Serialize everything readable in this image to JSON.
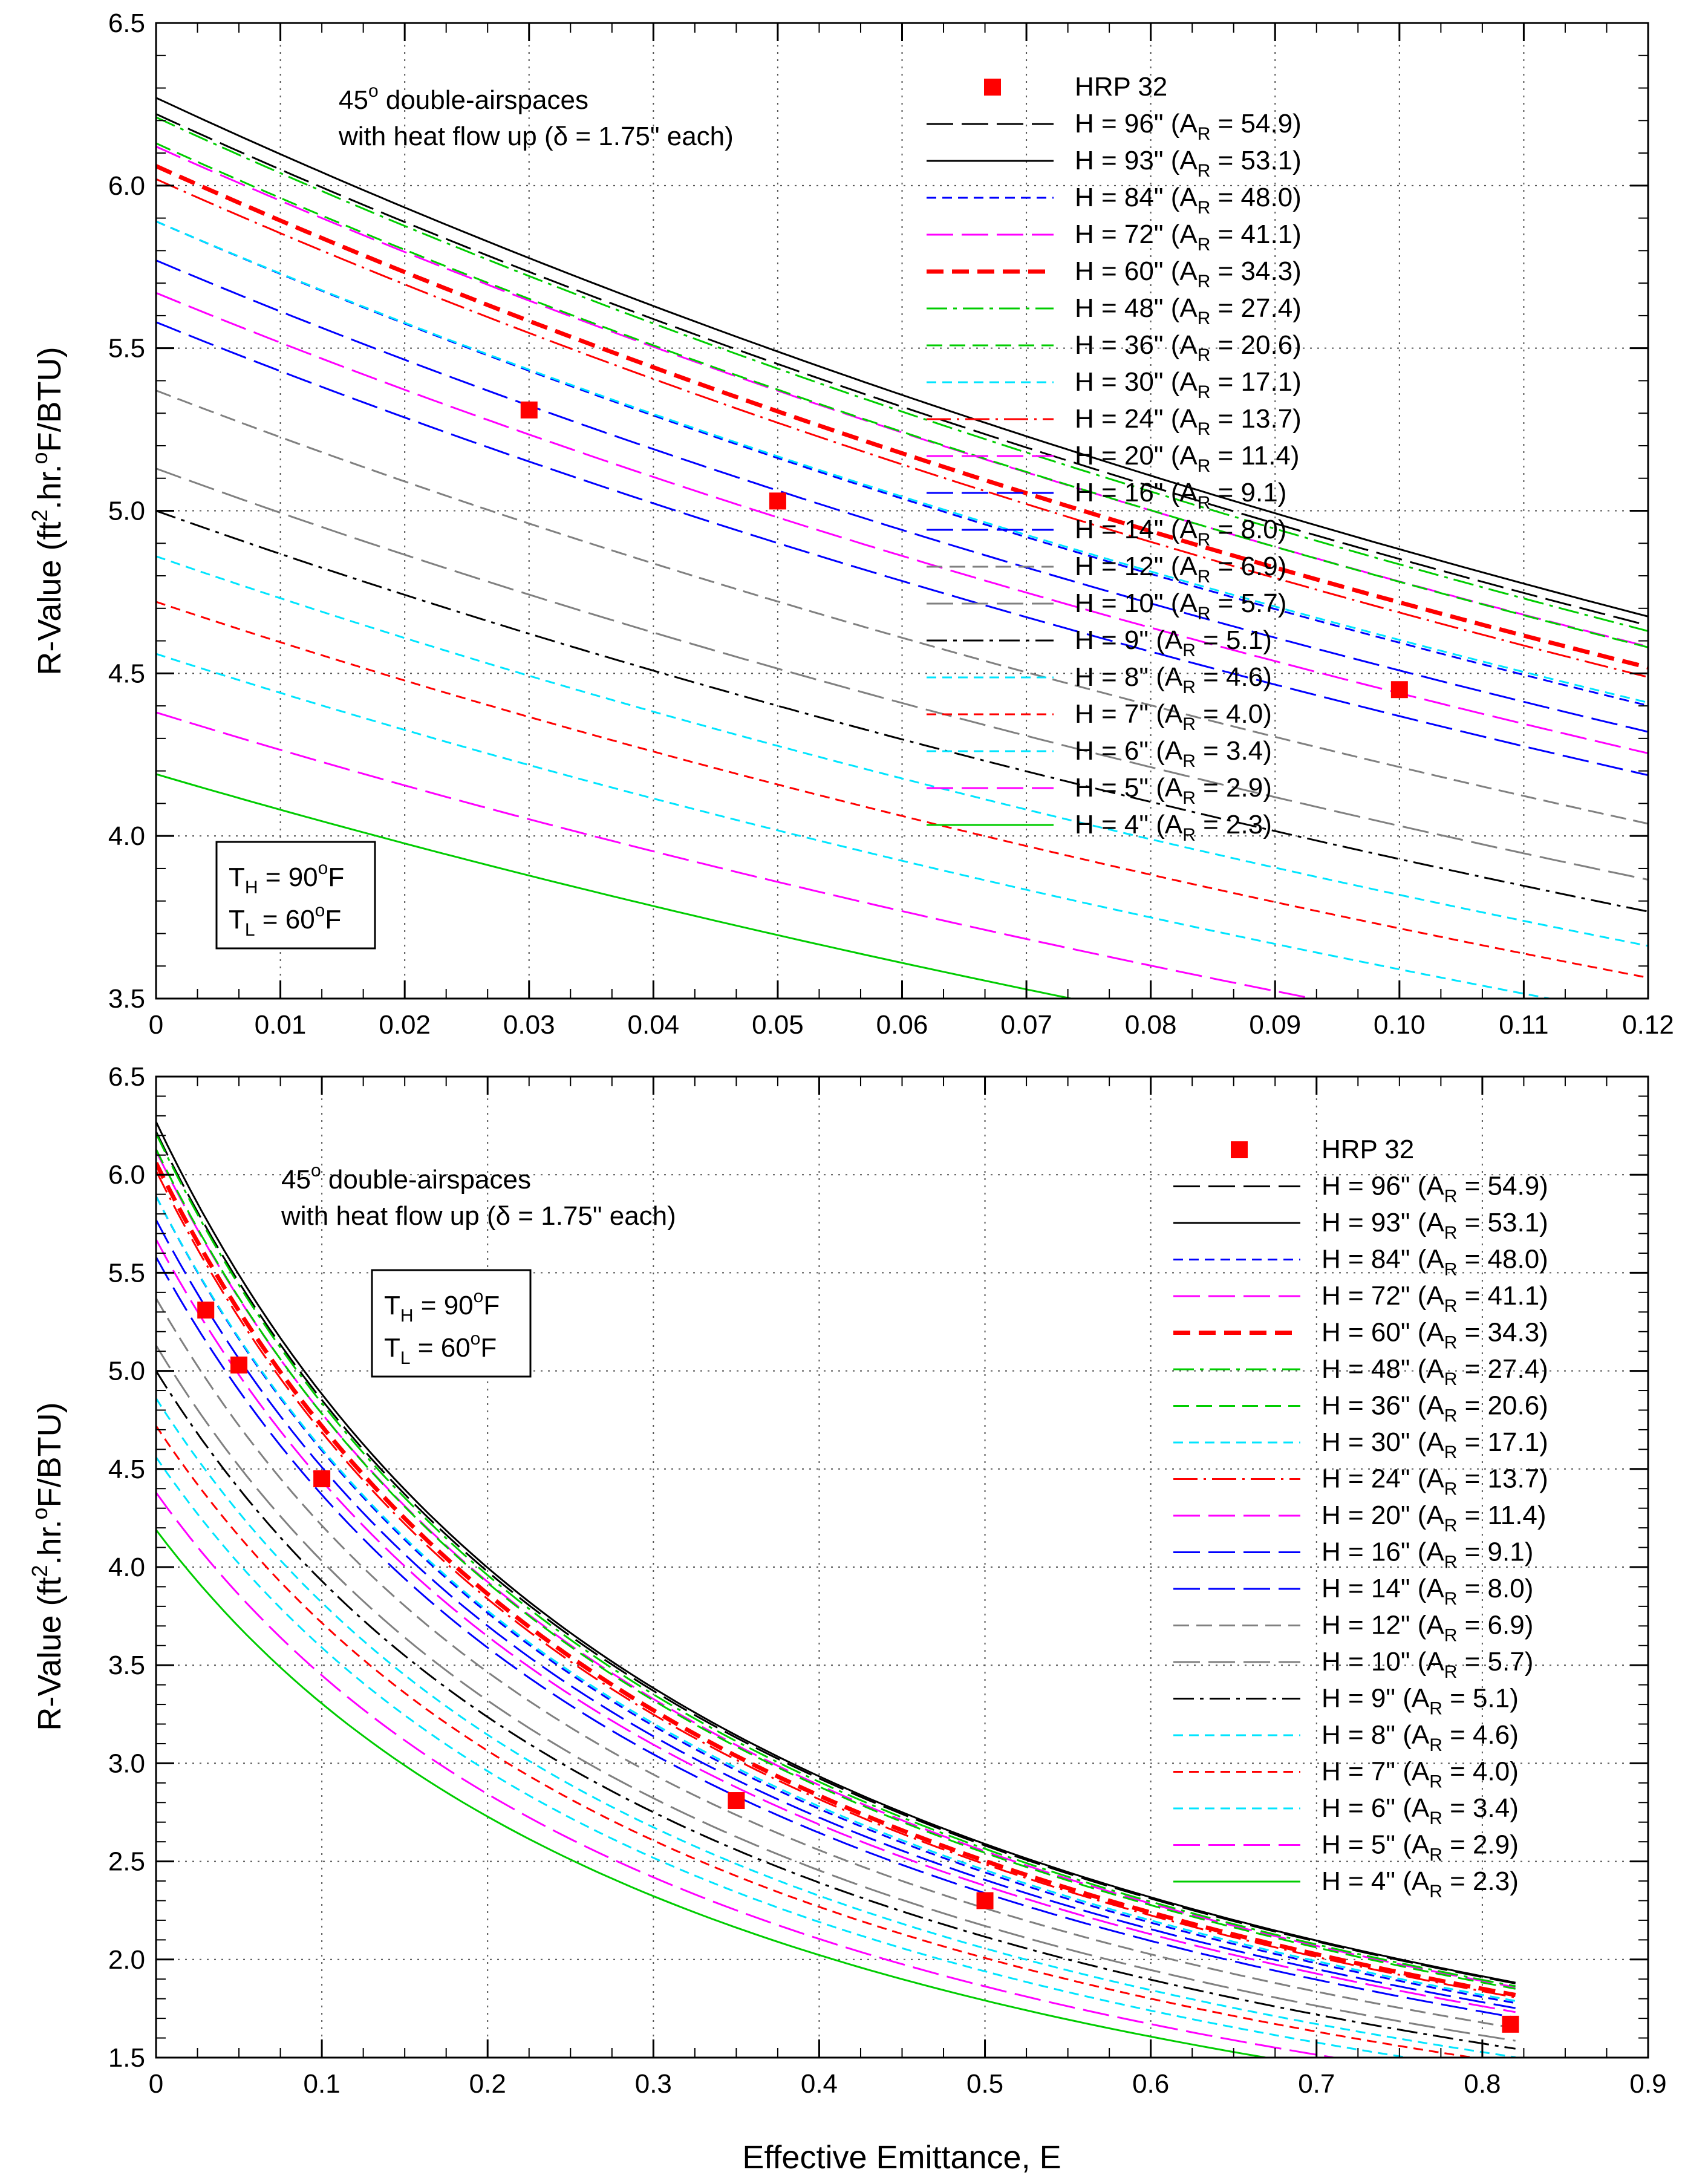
{
  "chart_data": [
    {
      "id": "top",
      "type": "line",
      "xlim": [
        0,
        0.12
      ],
      "ylim": [
        3.5,
        6.5
      ],
      "xticks": [
        "0",
        "0.01",
        "0.02",
        "0.03",
        "0.04",
        "0.05",
        "0.06",
        "0.07",
        "0.08",
        "0.09",
        "0.10",
        "0.11",
        "0.12"
      ],
      "yticks": [
        "3.5",
        "4.0",
        "4.5",
        "5.0",
        "5.5",
        "6.0",
        "6.5"
      ],
      "ylabel_parts": [
        "R-Value (ft",
        "2",
        ".hr.",
        "o",
        "F/BTU)"
      ],
      "annotation": [
        "45",
        "o",
        " double-airspaces",
        "with heat flow up (δ = 1.75\" each)"
      ],
      "temp_box": [
        "T",
        "H",
        " = 90",
        "o",
        "F",
        "T",
        "L",
        " = 60",
        "o",
        "F"
      ],
      "grid": true,
      "legend_position": "top-right",
      "hrp": {
        "name": "HRP 32",
        "x": [
          0.03,
          0.05,
          0.1
        ],
        "y": [
          5.31,
          5.03,
          4.45
        ]
      },
      "series": [
        {
          "h": "H = 96\" (A",
          "sub": "R",
          "ar": " = 54.9)",
          "color": "#000000",
          "style": "longdash",
          "r0": 6.22,
          "decay": 0.2
        },
        {
          "h": "H = 93\" (A",
          "sub": "R",
          "ar": " = 53.1)",
          "color": "#000000",
          "style": "solid",
          "r0": 6.27,
          "decay": 0.21
        },
        {
          "h": "H = 84\" (A",
          "sub": "R",
          "ar": " = 48.0)",
          "color": "#0000ff",
          "style": "shortdash",
          "r0": 5.89,
          "decay": 0.2
        },
        {
          "h": "H = 72\" (A",
          "sub": "R",
          "ar": " = 41.1)",
          "color": "#ff00ff",
          "style": "longdash",
          "r0": 6.12,
          "decay": 0.19
        },
        {
          "h": "H = 60\" (A",
          "sub": "R",
          "ar": " = 34.3)",
          "color": "#ff0000",
          "style": "thickdash",
          "r0": 6.06,
          "decay": 0.21
        },
        {
          "h": "H = 48\" (A",
          "sub": "R",
          "ar": " = 27.4)",
          "color": "#00cc00",
          "style": "dashdot",
          "r0": 6.21,
          "decay": 0.21
        },
        {
          "h": "H = 36\" (A",
          "sub": "R",
          "ar": " = 20.6)",
          "color": "#00cc00",
          "style": "dashed",
          "r0": 6.13,
          "decay": 0.2
        },
        {
          "h": "H = 30\" (A",
          "sub": "R",
          "ar": " = 17.1)",
          "color": "#00e5ff",
          "style": "shortdash",
          "r0": 5.89,
          "decay": 0.19
        },
        {
          "h": "H = 24\" (A",
          "sub": "R",
          "ar": " = 13.7)",
          "color": "#ff0000",
          "style": "longdot",
          "r0": 6.02,
          "decay": 0.21
        },
        {
          "h": "H = 20\" (A",
          "sub": "R",
          "ar": " = 11.4)",
          "color": "#ff00ff",
          "style": "longdash",
          "r0": 5.67,
          "decay": 0.18
        },
        {
          "h": "H = 16\" (A",
          "sub": "R",
          "ar": " = 9.1)",
          "color": "#0000ff",
          "style": "longdash",
          "r0": 5.77,
          "decay": 0.19
        },
        {
          "h": "H = 14\" (A",
          "sub": "R",
          "ar": " = 8.0)",
          "color": "#0000ff",
          "style": "longdash",
          "r0": 5.58,
          "decay": 0.18
        },
        {
          "h": "H = 12\" (A",
          "sub": "R",
          "ar": " = 6.9)",
          "color": "#808080",
          "style": "dashed",
          "r0": 5.37,
          "decay": 0.17
        },
        {
          "h": "H = 10\" (A",
          "sub": "R",
          "ar": " = 5.7)",
          "color": "#808080",
          "style": "longdash",
          "r0": 5.13,
          "decay": 0.16
        },
        {
          "h": "H = 9\" (A",
          "sub": "R",
          "ar": " = 5.1)",
          "color": "#000000",
          "style": "dashdot",
          "r0": 5.0,
          "decay": 0.16
        },
        {
          "h": "H = 8\" (A",
          "sub": "R",
          "ar": " = 4.6)",
          "color": "#00e5ff",
          "style": "shortdash",
          "r0": 4.86,
          "decay": 0.16
        },
        {
          "h": "H = 7\" (A",
          "sub": "R",
          "ar": " = 4.0)",
          "color": "#ff0000",
          "style": "shortdash",
          "r0": 4.72,
          "decay": 0.15
        },
        {
          "h": "H = 6\" (A",
          "sub": "R",
          "ar": " = 3.4)",
          "color": "#00e5ff",
          "style": "shortdash",
          "r0": 4.56,
          "decay": 0.15
        },
        {
          "h": "H = 5\" (A",
          "sub": "R",
          "ar": " = 2.9)",
          "color": "#ff00ff",
          "style": "longdash",
          "r0": 4.38,
          "decay": 0.15
        },
        {
          "h": "H = 4\" (A",
          "sub": "R",
          "ar": " = 2.3)",
          "color": "#00cc00",
          "style": "solid",
          "r0": 4.19,
          "decay": 0.14
        }
      ]
    },
    {
      "id": "bottom",
      "type": "line",
      "xlim": [
        0,
        0.9
      ],
      "ylim": [
        1.5,
        6.5
      ],
      "xmax_curve": 0.82,
      "xticks": [
        "0",
        "0.1",
        "0.2",
        "0.3",
        "0.4",
        "0.5",
        "0.6",
        "0.7",
        "0.8",
        "0.9"
      ],
      "yticks": [
        "1.5",
        "2.0",
        "2.5",
        "3.0",
        "3.5",
        "4.0",
        "4.5",
        "5.0",
        "5.5",
        "6.0",
        "6.5"
      ],
      "xlabel": "Effective Emittance, E",
      "ylabel_parts": [
        "R-Value (ft",
        "2",
        ".hr.",
        "o",
        "F/BTU)"
      ],
      "annotation": [
        "45",
        "o",
        " double-airspaces",
        "with heat flow up (δ = 1.75\" each)"
      ],
      "temp_box": [
        "T",
        "H",
        " = 90",
        "o",
        "F",
        "T",
        "L",
        " = 60",
        "o",
        "F"
      ],
      "grid": true,
      "legend_position": "right",
      "hrp": {
        "name": "HRP 32",
        "x": [
          0.03,
          0.05,
          0.1,
          0.35,
          0.5,
          0.817
        ],
        "y": [
          5.31,
          5.03,
          4.45,
          2.81,
          2.3,
          1.67
        ]
      },
      "series_from": "top"
    }
  ]
}
